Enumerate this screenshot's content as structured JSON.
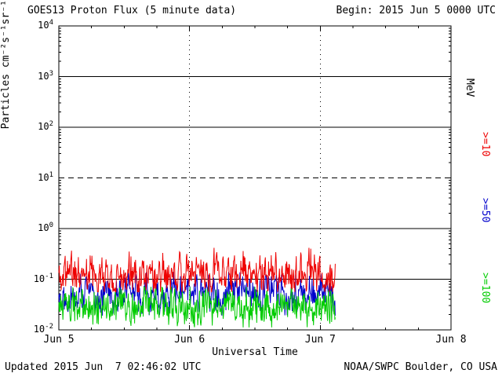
{
  "header": {
    "title": "GOES13 Proton Flux (5 minute data)",
    "begin_label": "Begin: 2015 Jun 5 0000 UTC"
  },
  "footer": {
    "updated": "Updated 2015 Jun  7 02:46:02 UTC",
    "credit": "NOAA/SWPC Boulder, CO USA"
  },
  "axes": {
    "y": {
      "label": "Particles cm⁻²s⁻¹sr⁻¹",
      "tick_exponents": [
        4,
        3,
        2,
        1,
        0,
        -1,
        -2
      ],
      "log_min": -2,
      "log_max": 4,
      "solid_gridline_exponents": [
        3,
        2,
        0,
        -1
      ],
      "dashed_gridline_exponents": [
        1
      ]
    },
    "x": {
      "label": "Universal Time",
      "span_days": 3,
      "ticks": [
        {
          "label": "Jun 5",
          "day": 0
        },
        {
          "label": "Jun 6",
          "day": 1
        },
        {
          "label": "Jun 7",
          "day": 2
        },
        {
          "label": "Jun 8",
          "day": 3
        }
      ],
      "dotted_gridline_days": [
        1,
        2
      ],
      "minor_tick_hours": 6
    }
  },
  "right_labels": {
    "units": "MeV"
  },
  "chart_data": {
    "type": "line",
    "title": "GOES13 Proton Flux (5 minute data)",
    "xlabel": "Universal Time",
    "ylabel": "Particles cm⁻²s⁻¹sr⁻¹",
    "x_tick_labels": [
      "Jun 5",
      "Jun 6",
      "Jun 7",
      "Jun 8"
    ],
    "ylim": [
      0.01,
      10000
    ],
    "y_scale": "log",
    "dashed_threshold_line_flux": 10,
    "cadence_minutes": 5,
    "data_start_day": 0,
    "data_end_day": 2.115,
    "series": [
      {
        "name": "Protons >=10 MeV",
        "label": ">=10",
        "color": "#ee0000",
        "z": 3,
        "seed": 11,
        "mean_flux": 0.13,
        "log10_mean": -0.89,
        "clamp_log10": [
          -1.25,
          -0.38
        ],
        "spike_prob": 0.03,
        "spike_amp": 0.45,
        "approx_range_flux": [
          0.06,
          0.4
        ]
      },
      {
        "name": "Protons >=50 MeV",
        "label": ">=50",
        "color": "#0000cc",
        "z": 1,
        "seed": 22,
        "mean_flux": 0.05,
        "log10_mean": -1.28,
        "clamp_log10": [
          -1.72,
          -0.85
        ],
        "spike_prob": 0,
        "spike_amp": 0,
        "approx_range_flux": [
          0.02,
          0.12
        ]
      },
      {
        "name": "Protons >=100 MeV",
        "label": ">=100",
        "color": "#00cc00",
        "z": 2,
        "seed": 33,
        "mean_flux": 0.028,
        "log10_mean": -1.56,
        "clamp_log10": [
          -1.95,
          -1.15
        ],
        "spike_prob": 0,
        "spike_amp": 0,
        "approx_range_flux": [
          0.012,
          0.07
        ]
      }
    ]
  }
}
